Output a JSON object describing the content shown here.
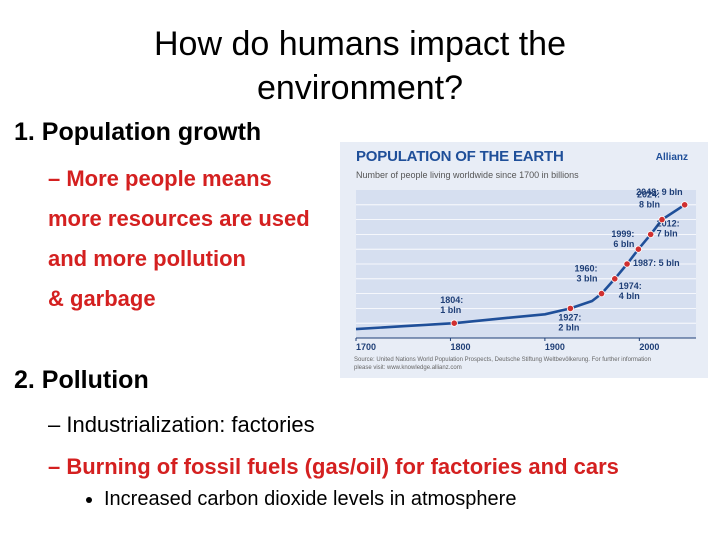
{
  "slide": {
    "title_line1": "How do humans impact the",
    "title_line2": "environment?",
    "section1": "1. Population growth",
    "s1_line1": "– More people means",
    "s1_line2": "more resources are used",
    "s1_line3": "and more pollution",
    "s1_line4": "& garbage",
    "section2": "2. Pollution",
    "s2_line1": "– Industrialization: factories",
    "s2_line2": "– Burning of fossil fuels (gas/oil) for factories and cars",
    "bullet1": "Increased carbon dioxide levels in atmosphere"
  },
  "colors": {
    "red": "#d42020",
    "chart_blue": "#1f4f99",
    "chart_bg": "#e8edf6"
  },
  "figure": {
    "title": "POPULATION OF THE EARTH",
    "subtitle": "Number of people living worldwide since 1700 in billions",
    "brand": "Allianz",
    "source": "Source: United Nations World Population Prospects, Deutsche Stiftung Weltbevölkerung. For further information please visit: www.knowledge.allianz.com"
  },
  "chart_data": {
    "type": "line",
    "title": "POPULATION OF THE EARTH",
    "subtitle": "Number of people living worldwide since 1700 in billions",
    "x_ticks": [
      "1700",
      "1800",
      "1900",
      "2000"
    ],
    "xlim": [
      1700,
      2060
    ],
    "ylim": [
      0,
      10
    ],
    "series": [
      {
        "x": [
          1700,
          1750,
          1804,
          1850,
          1900,
          1927,
          1950,
          1960,
          1974,
          1987,
          1999,
          2012,
          2024,
          2048
        ],
        "values": [
          0.6,
          0.8,
          1,
          1.3,
          1.6,
          2,
          2.5,
          3,
          4,
          5,
          6,
          7,
          8,
          9
        ]
      }
    ],
    "annotations": [
      {
        "x": 1804,
        "y": 1,
        "lines": [
          "1804:",
          "1 bln"
        ]
      },
      {
        "x": 1927,
        "y": 2,
        "lines": [
          "1927:",
          "2 bln"
        ]
      },
      {
        "x": 1960,
        "y": 3,
        "lines": [
          "1960:",
          "3 bln"
        ]
      },
      {
        "x": 1974,
        "y": 4,
        "lines": [
          "1974:",
          "4 bln"
        ]
      },
      {
        "x": 1987,
        "y": 5,
        "lines": [
          "1987: 5 bln"
        ]
      },
      {
        "x": 1999,
        "y": 6,
        "lines": [
          "1999:",
          "6 bln"
        ]
      },
      {
        "x": 2012,
        "y": 7,
        "lines": [
          "2012:",
          "7 bln"
        ]
      },
      {
        "x": 2024,
        "y": 8,
        "lines": [
          "2024:",
          "8 bln"
        ]
      },
      {
        "x": 2048,
        "y": 9,
        "lines": [
          "2048: 9 bln"
        ]
      }
    ]
  }
}
